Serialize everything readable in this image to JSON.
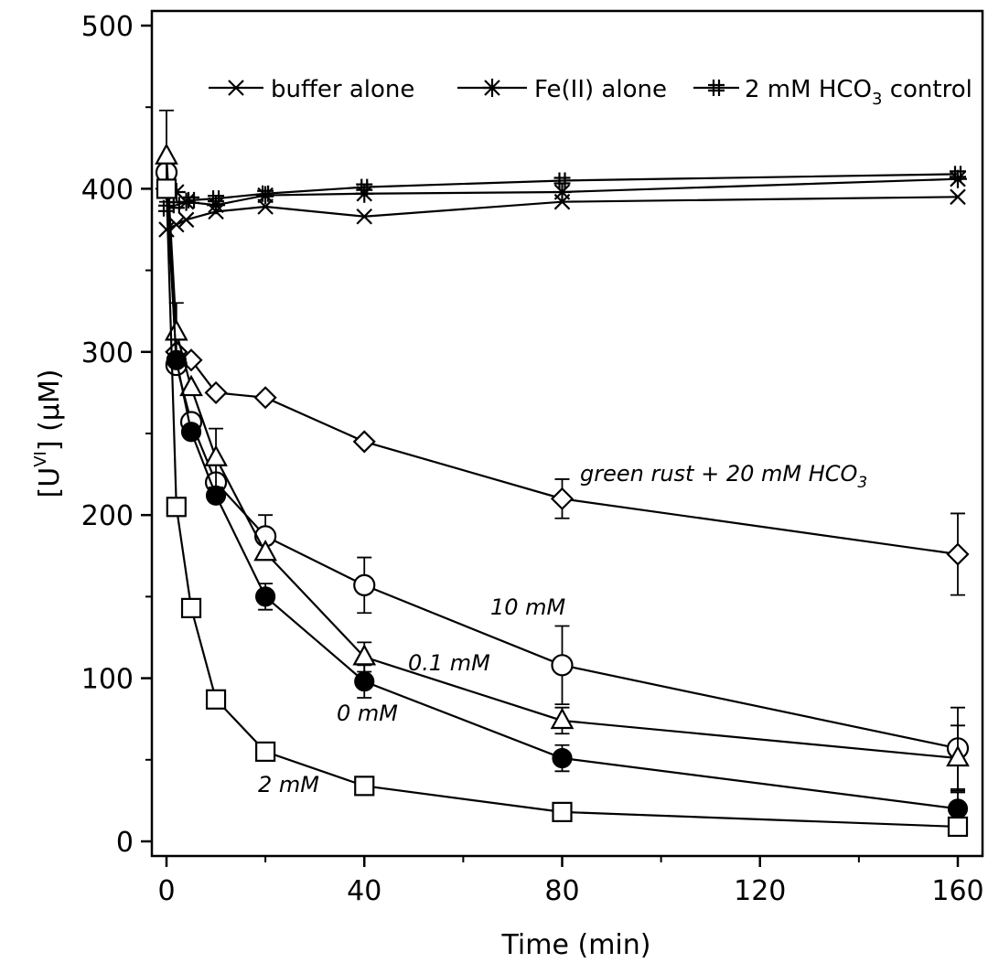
{
  "chart_data": {
    "type": "line",
    "xlabel": "Time (min)",
    "ylabel": {
      "prefix": "[U",
      "sup": "VI",
      "suffix": "] (µM)"
    },
    "xlim": [
      -3,
      165
    ],
    "ylim": [
      -10,
      500
    ],
    "x_ticks": [
      0,
      40,
      80,
      120,
      160
    ],
    "x_minor_ticks": [
      20,
      60,
      100,
      140
    ],
    "y_ticks": [
      0,
      100,
      200,
      300,
      400,
      500
    ],
    "y_minor_ticks": [
      50,
      150,
      250,
      350,
      450
    ],
    "grid": false,
    "legend": {
      "placement": "top",
      "entries": [
        {
          "series": "buffer",
          "text": "buffer alone"
        },
        {
          "series": "fe",
          "text": "Fe(II) alone"
        },
        {
          "series": "hco3ctrl",
          "text": "2 mM HCO",
          "sub": "3",
          "suffix": " control"
        }
      ]
    },
    "annotations": [
      {
        "text": "green rust + 20 mM HCO",
        "sub": "3"
      },
      {
        "text": "10 mM"
      },
      {
        "text": "0.1 mM"
      },
      {
        "text": "0 mM"
      },
      {
        "text": "2 mM"
      }
    ],
    "series": [
      {
        "id": "buffer",
        "marker": "x",
        "x": [
          0,
          2,
          4,
          10,
          20,
          40,
          80,
          160
        ],
        "y": [
          375,
          378,
          381,
          386,
          389,
          383,
          392,
          395
        ]
      },
      {
        "id": "fe",
        "marker": "star",
        "x": [
          0,
          2,
          4,
          10,
          20,
          40,
          80,
          160
        ],
        "y": [
          400,
          398,
          392,
          390,
          396,
          397,
          398,
          406
        ]
      },
      {
        "id": "hco3ctrl",
        "marker": "hash",
        "x": [
          0,
          2,
          5,
          10,
          20,
          40,
          80,
          160
        ],
        "y": [
          388,
          390,
          393,
          394,
          397,
          401,
          405,
          409
        ]
      },
      {
        "id": "gr20",
        "marker": "diamond",
        "x": [
          0,
          2,
          5,
          10,
          20,
          40,
          80,
          160
        ],
        "y": [
          400,
          300,
          295,
          275,
          272,
          245,
          210,
          176
        ],
        "err": [
          0,
          0,
          0,
          0,
          0,
          0,
          12,
          25
        ]
      },
      {
        "id": "m10",
        "marker": "circle-open",
        "x": [
          0,
          2,
          5,
          10,
          20,
          40,
          80,
          160
        ],
        "y": [
          410,
          292,
          257,
          220,
          187,
          157,
          108,
          57
        ],
        "err": [
          0,
          0,
          0,
          0,
          13,
          17,
          24,
          25
        ]
      },
      {
        "id": "m01",
        "marker": "triangle",
        "x": [
          0,
          2,
          5,
          10,
          20,
          40,
          80,
          160
        ],
        "y": [
          420,
          312,
          278,
          235,
          177,
          113,
          74,
          51
        ],
        "err": [
          28,
          18,
          0,
          18,
          0,
          9,
          8,
          20
        ]
      },
      {
        "id": "m0",
        "marker": "circle-filled",
        "x": [
          0,
          2,
          5,
          10,
          20,
          40,
          80,
          160
        ],
        "y": [
          400,
          295,
          251,
          212,
          150,
          98,
          51,
          20
        ],
        "err": [
          0,
          0,
          0,
          0,
          8,
          10,
          8,
          10
        ]
      },
      {
        "id": "m2",
        "marker": "square",
        "x": [
          0,
          2,
          5,
          10,
          20,
          40,
          80,
          160
        ],
        "y": [
          400,
          205,
          143,
          87,
          55,
          34,
          18,
          9
        ],
        "err": [
          0,
          0,
          0,
          0,
          0,
          0,
          0,
          0
        ]
      }
    ]
  }
}
